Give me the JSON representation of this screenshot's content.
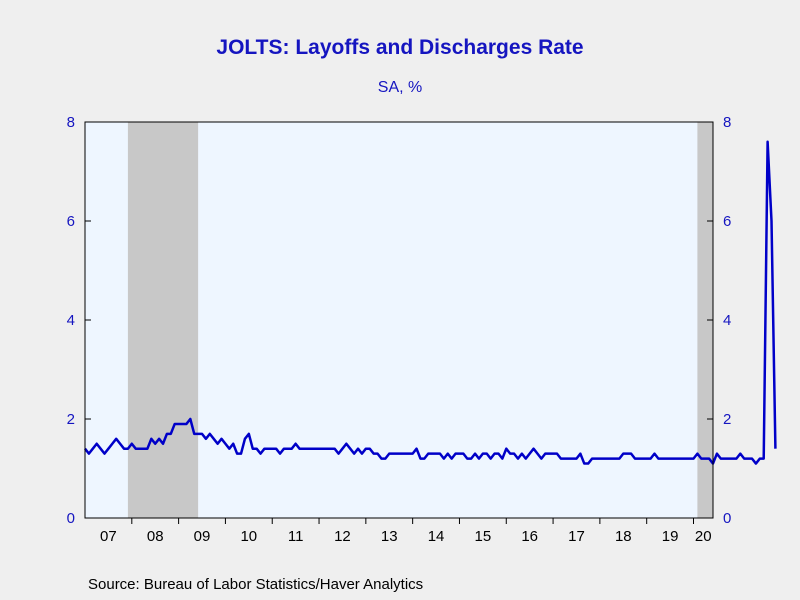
{
  "chart_data": {
    "type": "line",
    "title": "JOLTS: Layoffs and Discharges Rate",
    "subtitle": "SA, %",
    "source": "Source:  Bureau of Labor Statistics/Haver Analytics",
    "xlabel": "",
    "ylabel": "",
    "ylim": [
      0,
      8
    ],
    "yticks": [
      0,
      2,
      4,
      6,
      8
    ],
    "y_axes": "left and right (mirrored)",
    "x_range": [
      "2007-01",
      "2020-06"
    ],
    "x_tick_labels": [
      "07",
      "08",
      "09",
      "10",
      "11",
      "12",
      "13",
      "14",
      "15",
      "16",
      "17",
      "18",
      "19",
      "20"
    ],
    "grid": false,
    "legend": "none",
    "colors": {
      "line": "#0000c8",
      "plot_bg": "#eef6ff",
      "recession": "#c8c8c8",
      "text": "#1515c0",
      "page_bg": "#efefef"
    },
    "recessions": [
      {
        "start": "2007-12",
        "end": "2009-06"
      },
      {
        "start": "2020-02",
        "end": "2020-06"
      }
    ],
    "series": [
      {
        "start": "2007-01",
        "frequency": "monthly",
        "values": [
          1.4,
          1.3,
          1.4,
          1.5,
          1.4,
          1.3,
          1.4,
          1.5,
          1.6,
          1.5,
          1.4,
          1.4,
          1.5,
          1.4,
          1.4,
          1.4,
          1.4,
          1.6,
          1.5,
          1.6,
          1.5,
          1.7,
          1.7,
          1.9,
          1.9,
          1.9,
          1.9,
          2.0,
          1.7,
          1.7,
          1.7,
          1.6,
          1.7,
          1.6,
          1.5,
          1.6,
          1.5,
          1.4,
          1.5,
          1.3,
          1.3,
          1.6,
          1.7,
          1.4,
          1.4,
          1.3,
          1.4,
          1.4,
          1.4,
          1.4,
          1.3,
          1.4,
          1.4,
          1.4,
          1.5,
          1.4,
          1.4,
          1.4,
          1.4,
          1.4,
          1.4,
          1.4,
          1.4,
          1.4,
          1.4,
          1.3,
          1.4,
          1.5,
          1.4,
          1.3,
          1.4,
          1.3,
          1.4,
          1.4,
          1.3,
          1.3,
          1.2,
          1.2,
          1.3,
          1.3,
          1.3,
          1.3,
          1.3,
          1.3,
          1.3,
          1.4,
          1.2,
          1.2,
          1.3,
          1.3,
          1.3,
          1.3,
          1.2,
          1.3,
          1.2,
          1.3,
          1.3,
          1.3,
          1.2,
          1.2,
          1.3,
          1.2,
          1.3,
          1.3,
          1.2,
          1.3,
          1.3,
          1.2,
          1.4,
          1.3,
          1.3,
          1.2,
          1.3,
          1.2,
          1.3,
          1.4,
          1.3,
          1.2,
          1.3,
          1.3,
          1.3,
          1.3,
          1.2,
          1.2,
          1.2,
          1.2,
          1.2,
          1.3,
          1.1,
          1.1,
          1.2,
          1.2,
          1.2,
          1.2,
          1.2,
          1.2,
          1.2,
          1.2,
          1.3,
          1.3,
          1.3,
          1.2,
          1.2,
          1.2,
          1.2,
          1.2,
          1.3,
          1.2,
          1.2,
          1.2,
          1.2,
          1.2,
          1.2,
          1.2,
          1.2,
          1.2,
          1.2,
          1.3,
          1.2,
          1.2,
          1.2,
          1.1,
          1.3,
          1.2,
          1.2,
          1.2,
          1.2,
          1.2,
          1.3,
          1.2,
          1.2,
          1.2,
          1.1,
          1.2,
          1.2,
          7.6,
          6.0,
          1.4
        ]
      }
    ]
  }
}
